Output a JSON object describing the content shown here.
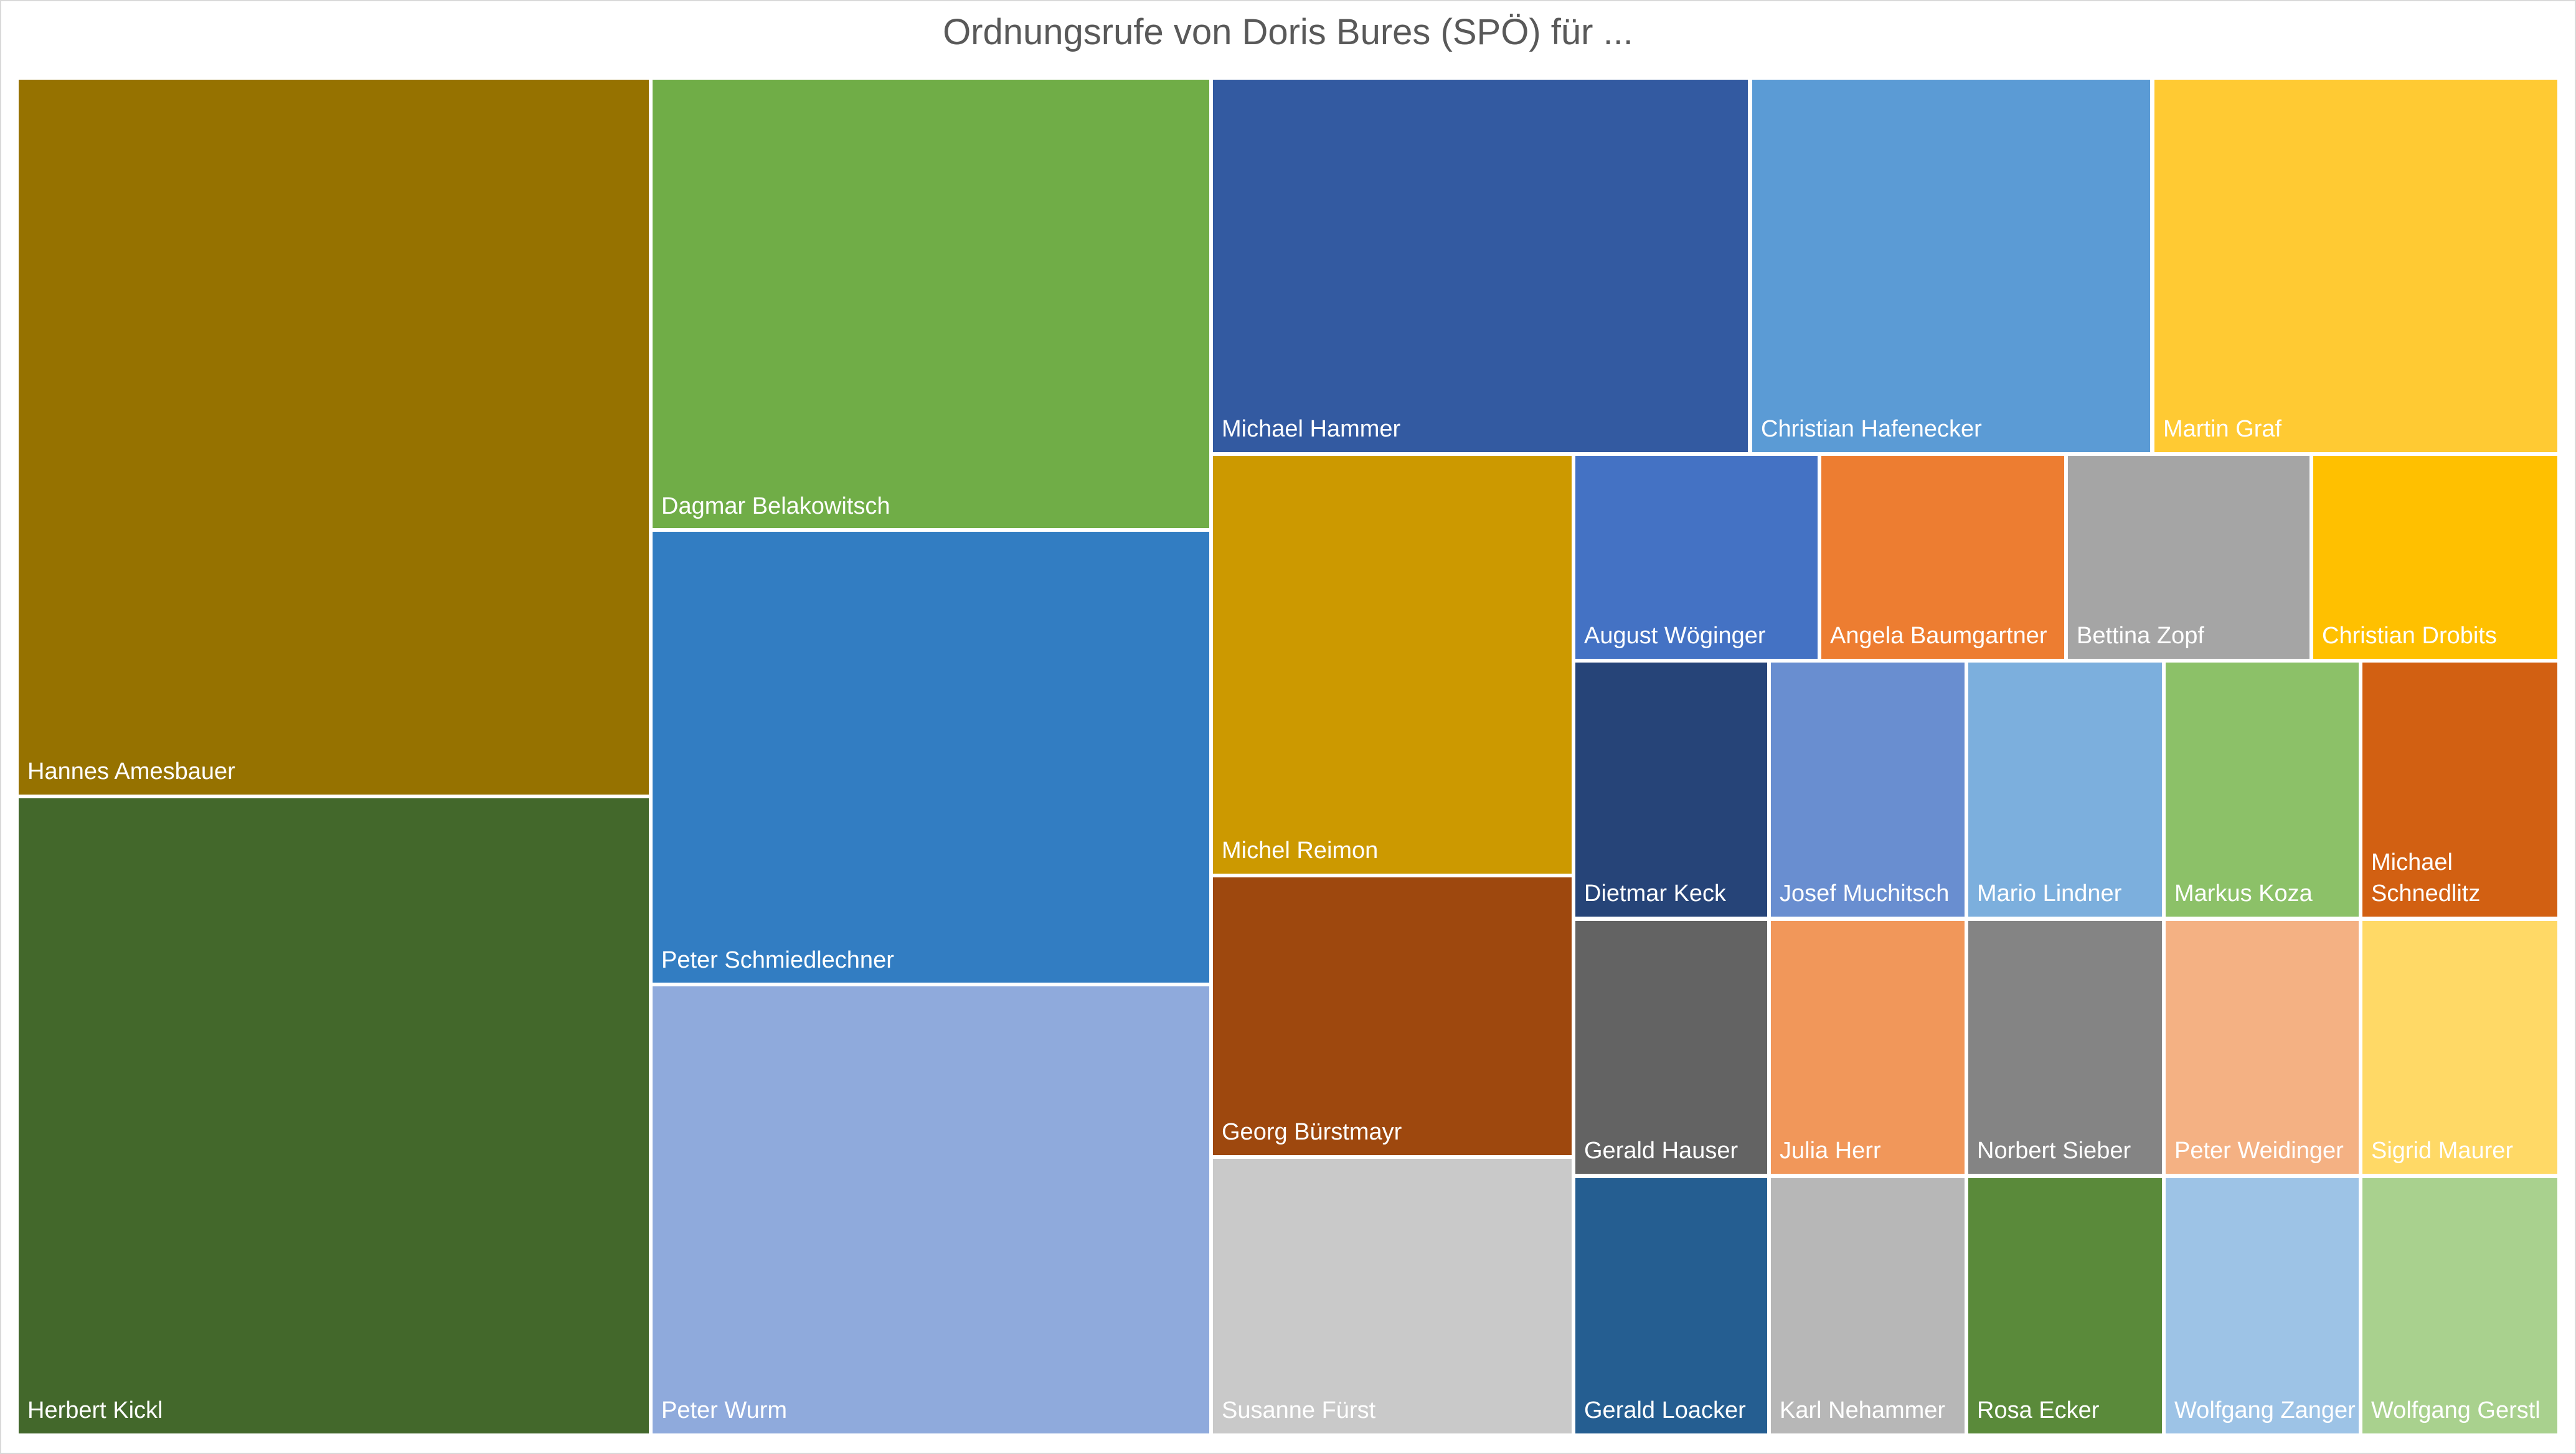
{
  "chart_data": {
    "type": "treemap",
    "title": "Ordnungsrufe von Doris Bures (SPÖ) für ...",
    "series": [
      {
        "name": "Hannes Amesbauer",
        "value": 10,
        "color": "#967200"
      },
      {
        "name": "Herbert Kickl",
        "value": 10,
        "color": "#43682B"
      },
      {
        "name": "Dagmar Belakowitsch",
        "value": 5,
        "color": "#70AD47"
      },
      {
        "name": "Peter Schmiedlechner",
        "value": 5,
        "color": "#327DC2"
      },
      {
        "name": "Peter Wurm",
        "value": 5,
        "color": "#8FAADC"
      },
      {
        "name": "Michael Hammer",
        "value": 3,
        "color": "#335AA1"
      },
      {
        "name": "Christian Hafenecker",
        "value": 2,
        "color": "#5B9BD5"
      },
      {
        "name": "Martin Graf",
        "value": 2,
        "color": "#FFCA33"
      },
      {
        "name": "Michel Reimon",
        "value": 2,
        "color": "#CC9900"
      },
      {
        "name": "Georg Bürstmayr",
        "value": 1.33,
        "color": "#9E480E"
      },
      {
        "name": "Susanne Fürst",
        "value": 1.33,
        "color": "#C9C9C9"
      },
      {
        "name": "August Wöginger",
        "value": 1,
        "color": "#4472C4"
      },
      {
        "name": "Angela Baumgartner",
        "value": 1,
        "color": "#ED7D31"
      },
      {
        "name": "Bettina Zopf",
        "value": 1,
        "color": "#A5A5A5"
      },
      {
        "name": "Christian Drobits",
        "value": 1,
        "color": "#FFC000"
      },
      {
        "name": "Dietmar Keck",
        "value": 1,
        "color": "#264478"
      },
      {
        "name": "Josef Muchitsch",
        "value": 1,
        "color": "#698ED0"
      },
      {
        "name": "Mario Lindner",
        "value": 1,
        "color": "#7CAFDD"
      },
      {
        "name": "Markus Koza",
        "value": 1,
        "color": "#8CC168"
      },
      {
        "name": "Michael Schnedlitz",
        "value": 1,
        "color": "#D26012"
      },
      {
        "name": "Gerald Hauser",
        "value": 1,
        "color": "#636363"
      },
      {
        "name": "Julia Herr",
        "value": 1,
        "color": "#F1975A"
      },
      {
        "name": "Norbert Sieber",
        "value": 1,
        "color": "#848484"
      },
      {
        "name": "Peter Weidinger",
        "value": 1,
        "color": "#F4B183"
      },
      {
        "name": "Sigrid Maurer",
        "value": 1,
        "color": "#FFD966"
      },
      {
        "name": "Gerald Loacker",
        "value": 1,
        "color": "#255E91"
      },
      {
        "name": "Karl Nehammer",
        "value": 1,
        "color": "#B7B7B7"
      },
      {
        "name": "Rosa Ecker",
        "value": 1,
        "color": "#5A8A3A"
      },
      {
        "name": "Wolfgang Zanger",
        "value": 1,
        "color": "#9DC3E6"
      },
      {
        "name": "Wolfgang Gerstl",
        "value": 1,
        "color": "#A9D18E"
      }
    ]
  }
}
